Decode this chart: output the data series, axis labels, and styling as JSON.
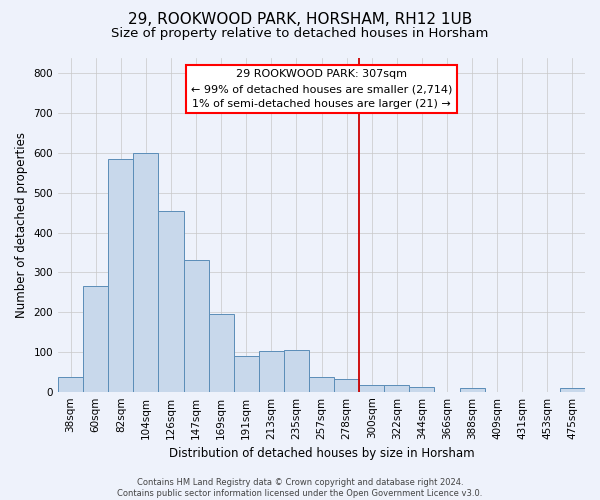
{
  "title": "29, ROOKWOOD PARK, HORSHAM, RH12 1UB",
  "subtitle": "Size of property relative to detached houses in Horsham",
  "xlabel": "Distribution of detached houses by size in Horsham",
  "ylabel": "Number of detached properties",
  "categories": [
    "38sqm",
    "60sqm",
    "82sqm",
    "104sqm",
    "126sqm",
    "147sqm",
    "169sqm",
    "191sqm",
    "213sqm",
    "235sqm",
    "257sqm",
    "278sqm",
    "300sqm",
    "322sqm",
    "344sqm",
    "366sqm",
    "388sqm",
    "409sqm",
    "431sqm",
    "453sqm",
    "475sqm"
  ],
  "values": [
    37,
    265,
    585,
    600,
    453,
    330,
    196,
    90,
    102,
    105,
    37,
    32,
    18,
    18,
    12,
    0,
    8,
    0,
    0,
    0,
    8
  ],
  "bar_color": "#c8d8eb",
  "bar_edge_color": "#5b8db8",
  "background_color": "#eef2fb",
  "grid_color": "#c8c8c8",
  "vline_color": "#cc0000",
  "annotation_text_line1": "29 ROOKWOOD PARK: 307sqm",
  "annotation_text_line2": "← 99% of detached houses are smaller (2,714)",
  "annotation_text_line3": "1% of semi-detached houses are larger (21) →",
  "ylim": [
    0,
    840
  ],
  "yticks": [
    0,
    100,
    200,
    300,
    400,
    500,
    600,
    700,
    800
  ],
  "title_fontsize": 11,
  "subtitle_fontsize": 9.5,
  "axis_label_fontsize": 8.5,
  "tick_fontsize": 7.5,
  "annotation_fontsize": 8,
  "footer_fontsize": 6,
  "footer": "Contains HM Land Registry data © Crown copyright and database right 2024.\nContains public sector information licensed under the Open Government Licence v3.0."
}
